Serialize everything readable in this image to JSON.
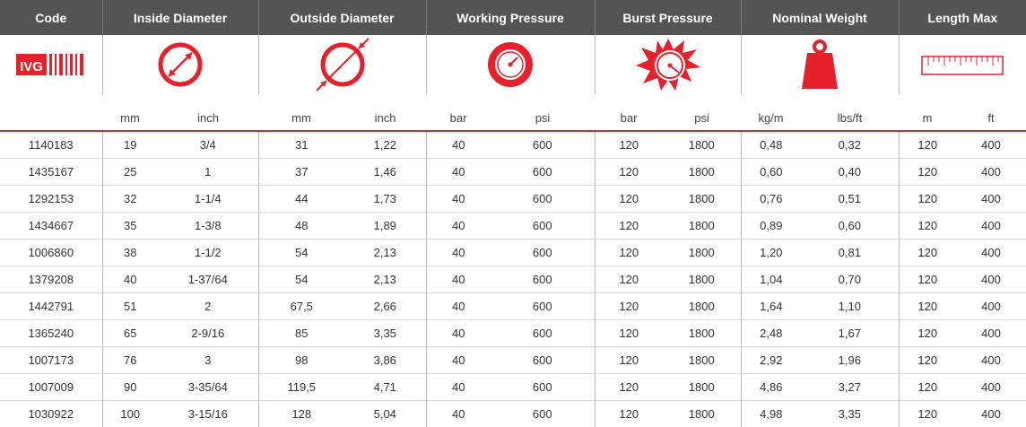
{
  "headers": [
    "Code",
    "Inside Diameter",
    "Outside Diameter",
    "Working Pressure",
    "Burst Pressure",
    "Nominal Weight",
    "Length Max"
  ],
  "units": [
    "mm",
    "inch",
    "mm",
    "inch",
    "bar",
    "psi",
    "bar",
    "psi",
    "kg/m",
    "lbs/ft",
    "m",
    "ft"
  ],
  "logo_text": "IVG",
  "icons": [
    "ivg-logo-barcode-icon",
    "inside-diameter-icon",
    "outside-diameter-icon",
    "pressure-gauge-icon",
    "burst-gauge-icon",
    "weight-icon",
    "ruler-icon"
  ],
  "colors": {
    "header_bg": "#545454",
    "accent": "#e6212b"
  },
  "rows": [
    [
      "1140183",
      "19",
      "3/4",
      "31",
      "1,22",
      "40",
      "600",
      "120",
      "1800",
      "0,48",
      "0,32",
      "120",
      "400"
    ],
    [
      "1435167",
      "25",
      "1",
      "37",
      "1,46",
      "40",
      "600",
      "120",
      "1800",
      "0,60",
      "0,40",
      "120",
      "400"
    ],
    [
      "1292153",
      "32",
      "1-1/4",
      "44",
      "1,73",
      "40",
      "600",
      "120",
      "1800",
      "0,76",
      "0,51",
      "120",
      "400"
    ],
    [
      "1434667",
      "35",
      "1-3/8",
      "48",
      "1,89",
      "40",
      "600",
      "120",
      "1800",
      "0,89",
      "0,60",
      "120",
      "400"
    ],
    [
      "1006860",
      "38",
      "1-1/2",
      "54",
      "2,13",
      "40",
      "600",
      "120",
      "1800",
      "1,20",
      "0,81",
      "120",
      "400"
    ],
    [
      "1379208",
      "40",
      "1-37/64",
      "54",
      "2,13",
      "40",
      "600",
      "120",
      "1800",
      "1,04",
      "0,70",
      "120",
      "400"
    ],
    [
      "1442791",
      "51",
      "2",
      "67,5",
      "2,66",
      "40",
      "600",
      "120",
      "1800",
      "1,64",
      "1,10",
      "120",
      "400"
    ],
    [
      "1365240",
      "65",
      "2-9/16",
      "85",
      "3,35",
      "40",
      "600",
      "120",
      "1800",
      "2,48",
      "1,67",
      "120",
      "400"
    ],
    [
      "1007173",
      "76",
      "3",
      "98",
      "3,86",
      "40",
      "600",
      "120",
      "1800",
      "2,92",
      "1,96",
      "120",
      "400"
    ],
    [
      "1007009",
      "90",
      "3-35/64",
      "119,5",
      "4,71",
      "40",
      "600",
      "120",
      "1800",
      "4,86",
      "3,27",
      "120",
      "400"
    ],
    [
      "1030922",
      "100",
      "3-15/16",
      "128",
      "5,04",
      "40",
      "600",
      "120",
      "1800",
      "4,98",
      "3,35",
      "120",
      "400"
    ]
  ]
}
